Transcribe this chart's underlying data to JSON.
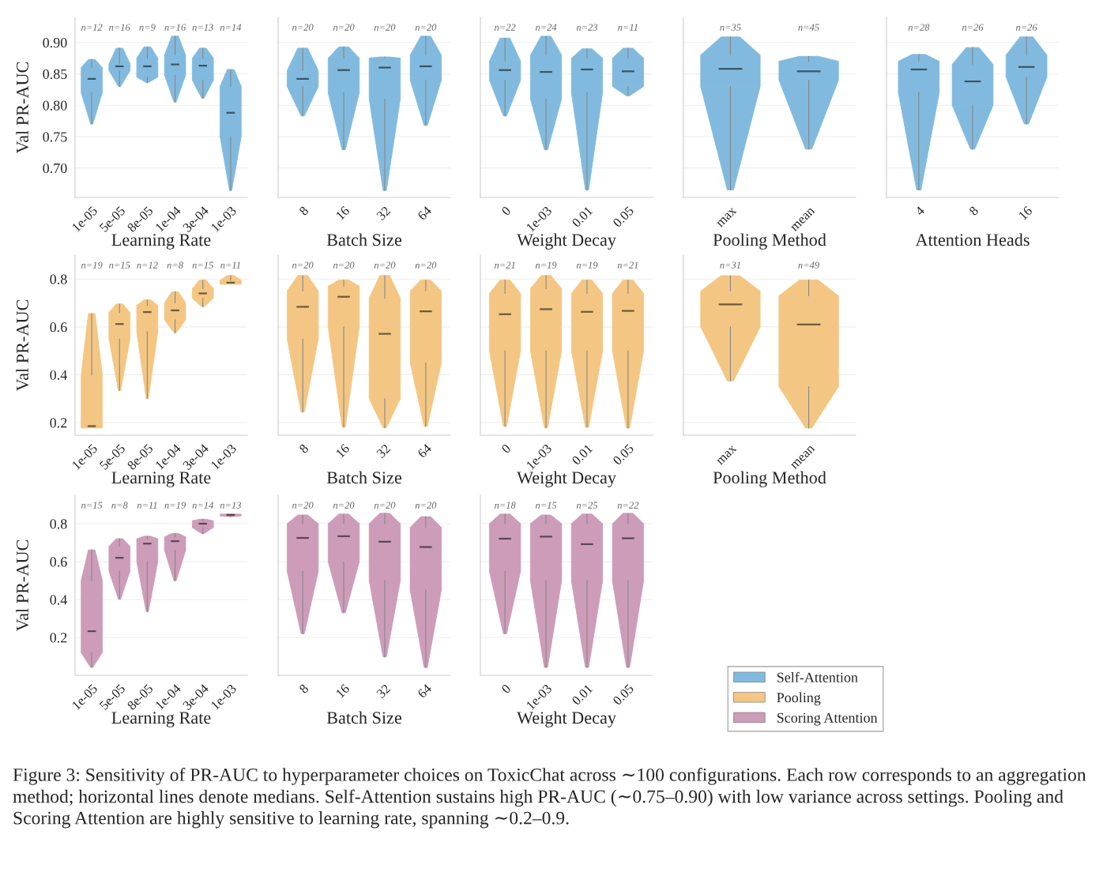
{
  "chart_data": [
    {
      "type": "box",
      "xlabel": "Learning Rate",
      "ylabel": "Val PR-AUC",
      "categories": [
        "1e-05",
        "5e-05",
        "8e-05",
        "1e-04",
        "3e-04",
        "1e-03"
      ],
      "ylim": [
        0.653,
        0.94
      ],
      "yticks": [
        {
          "value": 0.7,
          "label": "0.70"
        },
        {
          "value": 0.75,
          "label": "0.75"
        },
        {
          "value": 0.8,
          "label": "0.80"
        },
        {
          "value": 0.85,
          "label": "0.85"
        },
        {
          "value": 0.9,
          "label": "0.90"
        }
      ],
      "grid": "y",
      "series": [
        {
          "name": "Self-Attention",
          "color": "#81bade",
          "boxes": [
            {
              "low": 0.77,
              "q1": 0.82,
              "median": 0.842,
              "q3": 0.86,
              "high": 0.873
            },
            {
              "low": 0.83,
              "q1": 0.855,
              "median": 0.862,
              "q3": 0.866,
              "high": 0.891
            },
            {
              "low": 0.836,
              "q1": 0.845,
              "median": 0.862,
              "q3": 0.875,
              "high": 0.893
            },
            {
              "low": 0.805,
              "q1": 0.848,
              "median": 0.865,
              "q3": 0.88,
              "high": 0.91
            },
            {
              "low": 0.811,
              "q1": 0.84,
              "median": 0.863,
              "q3": 0.875,
              "high": 0.891
            },
            {
              "low": 0.664,
              "q1": 0.75,
              "median": 0.788,
              "q3": 0.83,
              "high": 0.857
            }
          ]
        }
      ],
      "annotations": [
        "n=12",
        "n=16",
        "n=9",
        "n=16",
        "n=13",
        "n=14"
      ]
    },
    {
      "type": "box",
      "xlabel": "Batch Size",
      "categories": [
        "8",
        "16",
        "32",
        "64"
      ],
      "ylim": [
        0.653,
        0.94
      ],
      "yticks": [
        {
          "value": 0.7,
          "label": "0.70"
        },
        {
          "value": 0.75,
          "label": "0.75"
        },
        {
          "value": 0.8,
          "label": "0.80"
        },
        {
          "value": 0.85,
          "label": "0.85"
        },
        {
          "value": 0.9,
          "label": "0.90"
        }
      ],
      "grid": "y",
      "tick_labels": "x",
      "series": [
        {
          "name": "Self-Attention",
          "color": "#81bade",
          "boxes": [
            {
              "low": 0.783,
              "q1": 0.83,
              "median": 0.842,
              "q3": 0.855,
              "high": 0.891
            },
            {
              "low": 0.729,
              "q1": 0.82,
              "median": 0.856,
              "q3": 0.875,
              "high": 0.893
            },
            {
              "low": 0.664,
              "q1": 0.81,
              "median": 0.86,
              "q3": 0.875,
              "high": 0.877
            },
            {
              "low": 0.768,
              "q1": 0.84,
              "median": 0.862,
              "q3": 0.88,
              "high": 0.91
            }
          ]
        }
      ],
      "annotations": [
        "n=20",
        "n=20",
        "n=20",
        "n=20"
      ]
    },
    {
      "type": "box",
      "xlabel": "Weight Decay",
      "categories": [
        "0",
        "1e-03",
        "0.01",
        "0.05"
      ],
      "ylim": [
        0.653,
        0.94
      ],
      "yticks": [
        {
          "value": 0.7,
          "label": "0.70"
        },
        {
          "value": 0.75,
          "label": "0.75"
        },
        {
          "value": 0.8,
          "label": "0.80"
        },
        {
          "value": 0.85,
          "label": "0.85"
        },
        {
          "value": 0.9,
          "label": "0.90"
        }
      ],
      "grid": "y",
      "tick_labels": "x",
      "series": [
        {
          "name": "Self-Attention",
          "color": "#81bade",
          "boxes": [
            {
              "low": 0.783,
              "q1": 0.84,
              "median": 0.856,
              "q3": 0.87,
              "high": 0.907
            },
            {
              "low": 0.729,
              "q1": 0.81,
              "median": 0.853,
              "q3": 0.88,
              "high": 0.91
            },
            {
              "low": 0.665,
              "q1": 0.82,
              "median": 0.857,
              "q3": 0.875,
              "high": 0.89
            },
            {
              "low": 0.815,
              "q1": 0.83,
              "median": 0.854,
              "q3": 0.875,
              "high": 0.891
            }
          ]
        }
      ],
      "annotations": [
        "n=22",
        "n=24",
        "n=23",
        "n=11"
      ]
    },
    {
      "type": "box",
      "xlabel": "Pooling Method",
      "categories": [
        "max",
        "mean"
      ],
      "ylim": [
        0.653,
        0.94
      ],
      "yticks": [
        {
          "value": 0.7,
          "label": "0.70"
        },
        {
          "value": 0.75,
          "label": "0.75"
        },
        {
          "value": 0.8,
          "label": "0.80"
        },
        {
          "value": 0.85,
          "label": "0.85"
        },
        {
          "value": 0.9,
          "label": "0.90"
        }
      ],
      "grid": "y",
      "tick_labels": "x",
      "series": [
        {
          "name": "Self-Attention",
          "color": "#81bade",
          "boxes": [
            {
              "low": 0.665,
              "q1": 0.83,
              "median": 0.858,
              "q3": 0.88,
              "high": 0.909
            },
            {
              "low": 0.73,
              "q1": 0.84,
              "median": 0.854,
              "q3": 0.87,
              "high": 0.878
            }
          ]
        }
      ],
      "annotations": [
        "n=35",
        "n=45"
      ]
    },
    {
      "type": "box",
      "xlabel": "Attention Heads",
      "categories": [
        "4",
        "8",
        "16"
      ],
      "ylim": [
        0.653,
        0.94
      ],
      "yticks": [
        {
          "value": 0.7,
          "label": "0.70"
        },
        {
          "value": 0.75,
          "label": "0.75"
        },
        {
          "value": 0.8,
          "label": "0.80"
        },
        {
          "value": 0.85,
          "label": "0.85"
        },
        {
          "value": 0.9,
          "label": "0.90"
        }
      ],
      "grid": "y",
      "tick_labels": "x",
      "series": [
        {
          "name": "Self-Attention",
          "color": "#81bade",
          "boxes": [
            {
              "low": 0.665,
              "q1": 0.82,
              "median": 0.857,
              "q3": 0.87,
              "high": 0.881
            },
            {
              "low": 0.73,
              "q1": 0.8,
              "median": 0.838,
              "q3": 0.865,
              "high": 0.892
            },
            {
              "low": 0.77,
              "q1": 0.845,
              "median": 0.861,
              "q3": 0.88,
              "high": 0.909
            }
          ]
        }
      ],
      "annotations": [
        "n=28",
        "n=26",
        "n=26"
      ]
    },
    {
      "type": "box",
      "xlabel": "Learning Rate",
      "ylabel": "Val PR-AUC",
      "categories": [
        "1e-05",
        "5e-05",
        "8e-05",
        "1e-04",
        "3e-04",
        "1e-03"
      ],
      "ylim": [
        0.147,
        0.9
      ],
      "yticks": [
        {
          "value": 0.2,
          "label": "0.2"
        },
        {
          "value": 0.4,
          "label": "0.4"
        },
        {
          "value": 0.6,
          "label": "0.6"
        },
        {
          "value": 0.8,
          "label": "0.8"
        }
      ],
      "grid": "y",
      "series": [
        {
          "name": "Pooling",
          "color": "#f4c683",
          "boxes": [
            {
              "low": 0.178,
              "q1": 0.178,
              "median": 0.185,
              "q3": 0.4,
              "high": 0.656
            },
            {
              "low": 0.334,
              "q1": 0.55,
              "median": 0.612,
              "q3": 0.66,
              "high": 0.696
            },
            {
              "low": 0.301,
              "q1": 0.58,
              "median": 0.662,
              "q3": 0.69,
              "high": 0.713
            },
            {
              "low": 0.575,
              "q1": 0.63,
              "median": 0.669,
              "q3": 0.7,
              "high": 0.747
            },
            {
              "low": 0.684,
              "q1": 0.72,
              "median": 0.74,
              "q3": 0.76,
              "high": 0.796
            },
            {
              "low": 0.779,
              "q1": 0.779,
              "median": 0.785,
              "q3": 0.795,
              "high": 0.815
            }
          ]
        }
      ],
      "annotations": [
        "n=19",
        "n=15",
        "n=12",
        "n=8",
        "n=15",
        "n=11"
      ]
    },
    {
      "type": "box",
      "xlabel": "Batch Size",
      "categories": [
        "8",
        "16",
        "32",
        "64"
      ],
      "ylim": [
        0.147,
        0.9
      ],
      "yticks": [
        {
          "value": 0.2,
          "label": "0.2"
        },
        {
          "value": 0.4,
          "label": "0.4"
        },
        {
          "value": 0.6,
          "label": "0.6"
        },
        {
          "value": 0.8,
          "label": "0.8"
        }
      ],
      "grid": "y",
      "tick_labels": "x",
      "series": [
        {
          "name": "Pooling",
          "color": "#f4c683",
          "boxes": [
            {
              "low": 0.244,
              "q1": 0.55,
              "median": 0.684,
              "q3": 0.75,
              "high": 0.815
            },
            {
              "low": 0.181,
              "q1": 0.6,
              "median": 0.726,
              "q3": 0.77,
              "high": 0.796
            },
            {
              "low": 0.178,
              "q1": 0.3,
              "median": 0.571,
              "q3": 0.72,
              "high": 0.815
            },
            {
              "low": 0.184,
              "q1": 0.45,
              "median": 0.665,
              "q3": 0.75,
              "high": 0.796
            }
          ]
        }
      ],
      "annotations": [
        "n=20",
        "n=20",
        "n=20",
        "n=20"
      ]
    },
    {
      "type": "box",
      "xlabel": "Weight Decay",
      "categories": [
        "0",
        "1e-03",
        "0.01",
        "0.05"
      ],
      "ylim": [
        0.147,
        0.9
      ],
      "yticks": [
        {
          "value": 0.2,
          "label": "0.2"
        },
        {
          "value": 0.4,
          "label": "0.4"
        },
        {
          "value": 0.6,
          "label": "0.6"
        },
        {
          "value": 0.8,
          "label": "0.8"
        }
      ],
      "grid": "y",
      "tick_labels": "x",
      "series": [
        {
          "name": "Pooling",
          "color": "#f4c683",
          "boxes": [
            {
              "low": 0.184,
              "q1": 0.5,
              "median": 0.653,
              "q3": 0.74,
              "high": 0.796
            },
            {
              "low": 0.178,
              "q1": 0.5,
              "median": 0.674,
              "q3": 0.76,
              "high": 0.815
            },
            {
              "low": 0.18,
              "q1": 0.5,
              "median": 0.663,
              "q3": 0.74,
              "high": 0.796
            },
            {
              "low": 0.177,
              "q1": 0.5,
              "median": 0.667,
              "q3": 0.74,
              "high": 0.796
            }
          ]
        }
      ],
      "annotations": [
        "n=21",
        "n=19",
        "n=19",
        "n=21"
      ]
    },
    {
      "type": "box",
      "xlabel": "Pooling Method",
      "categories": [
        "max",
        "mean"
      ],
      "ylim": [
        0.147,
        0.9
      ],
      "yticks": [
        {
          "value": 0.2,
          "label": "0.2"
        },
        {
          "value": 0.4,
          "label": "0.4"
        },
        {
          "value": 0.6,
          "label": "0.6"
        },
        {
          "value": 0.8,
          "label": "0.8"
        }
      ],
      "grid": "y",
      "tick_labels": "x",
      "series": [
        {
          "name": "Pooling",
          "color": "#f4c683",
          "boxes": [
            {
              "low": 0.374,
              "q1": 0.6,
              "median": 0.694,
              "q3": 0.75,
              "high": 0.814
            },
            {
              "low": 0.177,
              "q1": 0.35,
              "median": 0.61,
              "q3": 0.73,
              "high": 0.796
            }
          ]
        }
      ],
      "annotations": [
        "n=31",
        "n=49"
      ]
    },
    {
      "type": "box",
      "xlabel": "Learning Rate",
      "ylabel": "Val PR-AUC",
      "categories": [
        "1e-05",
        "5e-05",
        "8e-05",
        "1e-04",
        "3e-04",
        "1e-03"
      ],
      "ylim": [
        0.0,
        0.95
      ],
      "yticks": [
        {
          "value": 0.2,
          "label": "0.2"
        },
        {
          "value": 0.4,
          "label": "0.4"
        },
        {
          "value": 0.6,
          "label": "0.6"
        },
        {
          "value": 0.8,
          "label": "0.8"
        }
      ],
      "grid": "y",
      "series": [
        {
          "name": "Scoring Attention",
          "color": "#cd9cb8",
          "boxes": [
            {
              "low": 0.042,
              "q1": 0.12,
              "median": 0.233,
              "q3": 0.5,
              "high": 0.662
            },
            {
              "low": 0.402,
              "q1": 0.55,
              "median": 0.62,
              "q3": 0.68,
              "high": 0.721
            },
            {
              "low": 0.336,
              "q1": 0.6,
              "median": 0.695,
              "q3": 0.72,
              "high": 0.734
            },
            {
              "low": 0.499,
              "q1": 0.66,
              "median": 0.708,
              "q3": 0.73,
              "high": 0.749
            },
            {
              "low": 0.747,
              "q1": 0.78,
              "median": 0.8,
              "q3": 0.815,
              "high": 0.824
            },
            {
              "low": 0.837,
              "q1": 0.842,
              "median": 0.846,
              "q3": 0.849,
              "high": 0.851
            }
          ]
        }
      ],
      "annotations": [
        "n=15",
        "n=8",
        "n=11",
        "n=19",
        "n=14",
        "n=13"
      ]
    },
    {
      "type": "box",
      "xlabel": "Batch Size",
      "categories": [
        "8",
        "16",
        "32",
        "64"
      ],
      "ylim": [
        0.0,
        0.95
      ],
      "yticks": [
        {
          "value": 0.2,
          "label": "0.2"
        },
        {
          "value": 0.4,
          "label": "0.4"
        },
        {
          "value": 0.6,
          "label": "0.6"
        },
        {
          "value": 0.8,
          "label": "0.8"
        }
      ],
      "grid": "y",
      "tick_labels": "x",
      "series": [
        {
          "name": "Scoring Attention",
          "color": "#cd9cb8",
          "boxes": [
            {
              "low": 0.22,
              "q1": 0.55,
              "median": 0.725,
              "q3": 0.8,
              "high": 0.846
            },
            {
              "low": 0.33,
              "q1": 0.6,
              "median": 0.734,
              "q3": 0.8,
              "high": 0.851
            },
            {
              "low": 0.097,
              "q1": 0.5,
              "median": 0.705,
              "q3": 0.8,
              "high": 0.855
            },
            {
              "low": 0.042,
              "q1": 0.45,
              "median": 0.677,
              "q3": 0.78,
              "high": 0.837
            }
          ]
        }
      ],
      "annotations": [
        "n=20",
        "n=20",
        "n=20",
        "n=20"
      ]
    },
    {
      "type": "box",
      "xlabel": "Weight Decay",
      "categories": [
        "0",
        "1e-03",
        "0.01",
        "0.05"
      ],
      "ylim": [
        0.0,
        0.95
      ],
      "yticks": [
        {
          "value": 0.2,
          "label": "0.2"
        },
        {
          "value": 0.4,
          "label": "0.4"
        },
        {
          "value": 0.6,
          "label": "0.6"
        },
        {
          "value": 0.8,
          "label": "0.8"
        }
      ],
      "grid": "y",
      "tick_labels": "x",
      "legend": "bottom right",
      "series": [
        {
          "name": "Scoring Attention",
          "color": "#cd9cb8",
          "boxes": [
            {
              "low": 0.22,
              "q1": 0.55,
              "median": 0.721,
              "q3": 0.8,
              "high": 0.851
            },
            {
              "low": 0.042,
              "q1": 0.5,
              "median": 0.732,
              "q3": 0.8,
              "high": 0.846
            },
            {
              "low": 0.042,
              "q1": 0.5,
              "median": 0.692,
              "q3": 0.8,
              "high": 0.851
            },
            {
              "low": 0.042,
              "q1": 0.5,
              "median": 0.723,
              "q3": 0.8,
              "high": 0.855
            }
          ]
        }
      ],
      "annotations": [
        "n=18",
        "n=15",
        "n=25",
        "n=22",
        "Figure 3: Sensitivity of PR-AUC to hyperparameter choices on ToxicChat across ∼100 configurations. Each row corresponds to an aggregation method; horizontal lines denote medians. Self-Attention sustains high PR-AUC (∼0.75–0.90) with low variance across settings. Pooling and Scoring Attention are highly sensitive to learning rate, spanning ∼0.2–0.9."
      ]
    }
  ]
}
